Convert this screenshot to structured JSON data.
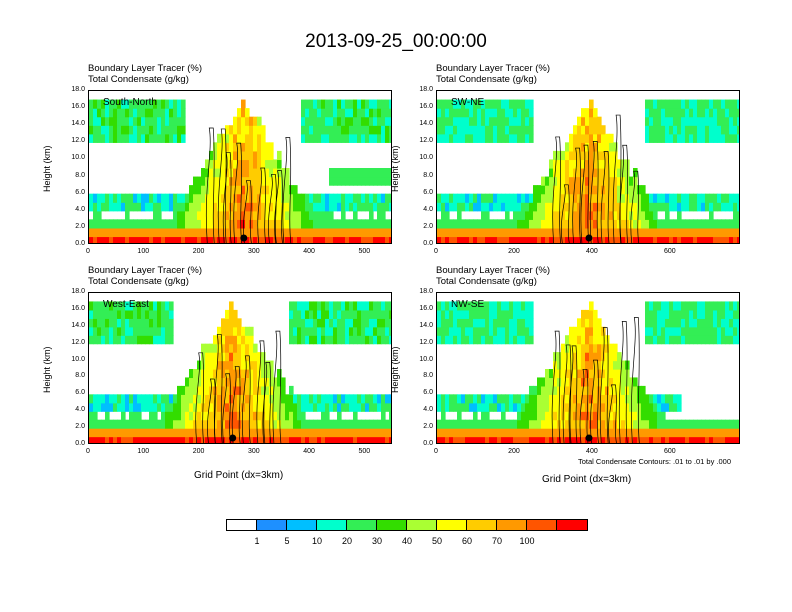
{
  "title": "2013-09-25_00:00:00",
  "subtitle_line1": "Boundary Layer Tracer   (%)",
  "subtitle_line2": "Total Condensate   (g/kg)",
  "ylabel": "Height (km)",
  "xlabel": "Grid Point (dx=3km)",
  "contour_note": "Total Condensate Contours: .01 to .01 by .000",
  "colorbar": {
    "colors": [
      "#ffffff",
      "#1e90ff",
      "#00bfff",
      "#00ffcc",
      "#33ee55",
      "#33dd00",
      "#aaff33",
      "#ffff00",
      "#ffcc00",
      "#ff9900",
      "#ff5500",
      "#ff0000"
    ],
    "labels": [
      "1",
      "5",
      "10",
      "20",
      "30",
      "40",
      "50",
      "60",
      "70",
      "100"
    ]
  },
  "chart_data": [
    {
      "type": "heatmap",
      "name": "South-North",
      "title": "South-North",
      "xlim": [
        0,
        550
      ],
      "ylim": [
        0,
        18
      ],
      "xticks": [
        "0",
        "100",
        "200",
        "300",
        "400",
        "500"
      ],
      "yticks": [
        "0.0",
        "2.0",
        "4.0",
        "6.0",
        "8.0",
        "10.0",
        "12.0",
        "14.0",
        "16.0",
        "18.0"
      ],
      "marker_x": 280
    },
    {
      "type": "heatmap",
      "name": "SW-NE",
      "title": "SW-NE",
      "xlim": [
        0,
        780
      ],
      "ylim": [
        0,
        18
      ],
      "xticks": [
        "0",
        "200",
        "400",
        "600"
      ],
      "yticks": [
        "0.0",
        "2.0",
        "4.0",
        "6.0",
        "8.0",
        "10.0",
        "12.0",
        "14.0",
        "16.0",
        "18.0"
      ],
      "marker_x": 390
    },
    {
      "type": "heatmap",
      "name": "West-East",
      "title": "West-East",
      "xlim": [
        0,
        550
      ],
      "ylim": [
        0,
        18
      ],
      "xticks": [
        "0",
        "100",
        "200",
        "300",
        "400",
        "500"
      ],
      "yticks": [
        "0.0",
        "2.0",
        "4.0",
        "6.0",
        "8.0",
        "10.0",
        "12.0",
        "14.0",
        "16.0",
        "18.0"
      ],
      "marker_x": 260
    },
    {
      "type": "heatmap",
      "name": "NW-SE",
      "title": "NW-SE",
      "xlim": [
        0,
        780
      ],
      "ylim": [
        0,
        18
      ],
      "xticks": [
        "0",
        "200",
        "400",
        "600"
      ],
      "yticks": [
        "0.0",
        "2.0",
        "4.0",
        "6.0",
        "8.0",
        "10.0",
        "12.0",
        "14.0",
        "16.0",
        "18.0"
      ],
      "marker_x": 390
    }
  ]
}
